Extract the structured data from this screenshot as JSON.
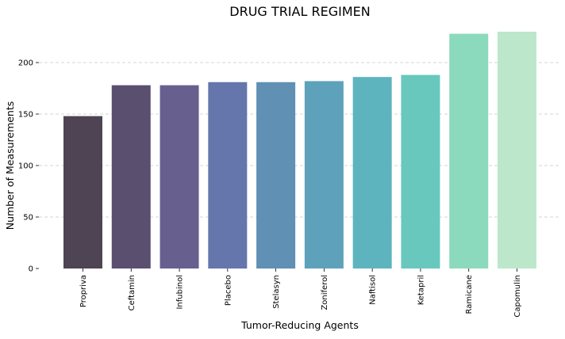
{
  "chart_data": {
    "type": "bar",
    "title": "DRUG TRIAL REGIMEN",
    "xlabel": "Tumor-Reducing Agents",
    "ylabel": "Number of Measurements",
    "categories": [
      "Propriva",
      "Ceftamin",
      "Infubinol",
      "Placebo",
      "Stelasyn",
      "Zoniferol",
      "Naftisol",
      "Ketapril",
      "Ramicane",
      "Capomulin"
    ],
    "values": [
      148,
      178,
      178,
      181,
      181,
      182,
      186,
      188,
      228,
      230
    ],
    "colors": [
      "#4f4453",
      "#5b4f70",
      "#67608f",
      "#6476ab",
      "#6090b3",
      "#5da2ba",
      "#5db4be",
      "#68c8bd",
      "#8cdabd",
      "#bce7cb"
    ],
    "ylim": [
      0,
      235
    ],
    "yticks": [
      0,
      50,
      100,
      150,
      200
    ],
    "grid": "y-dashed",
    "legend": "none"
  }
}
